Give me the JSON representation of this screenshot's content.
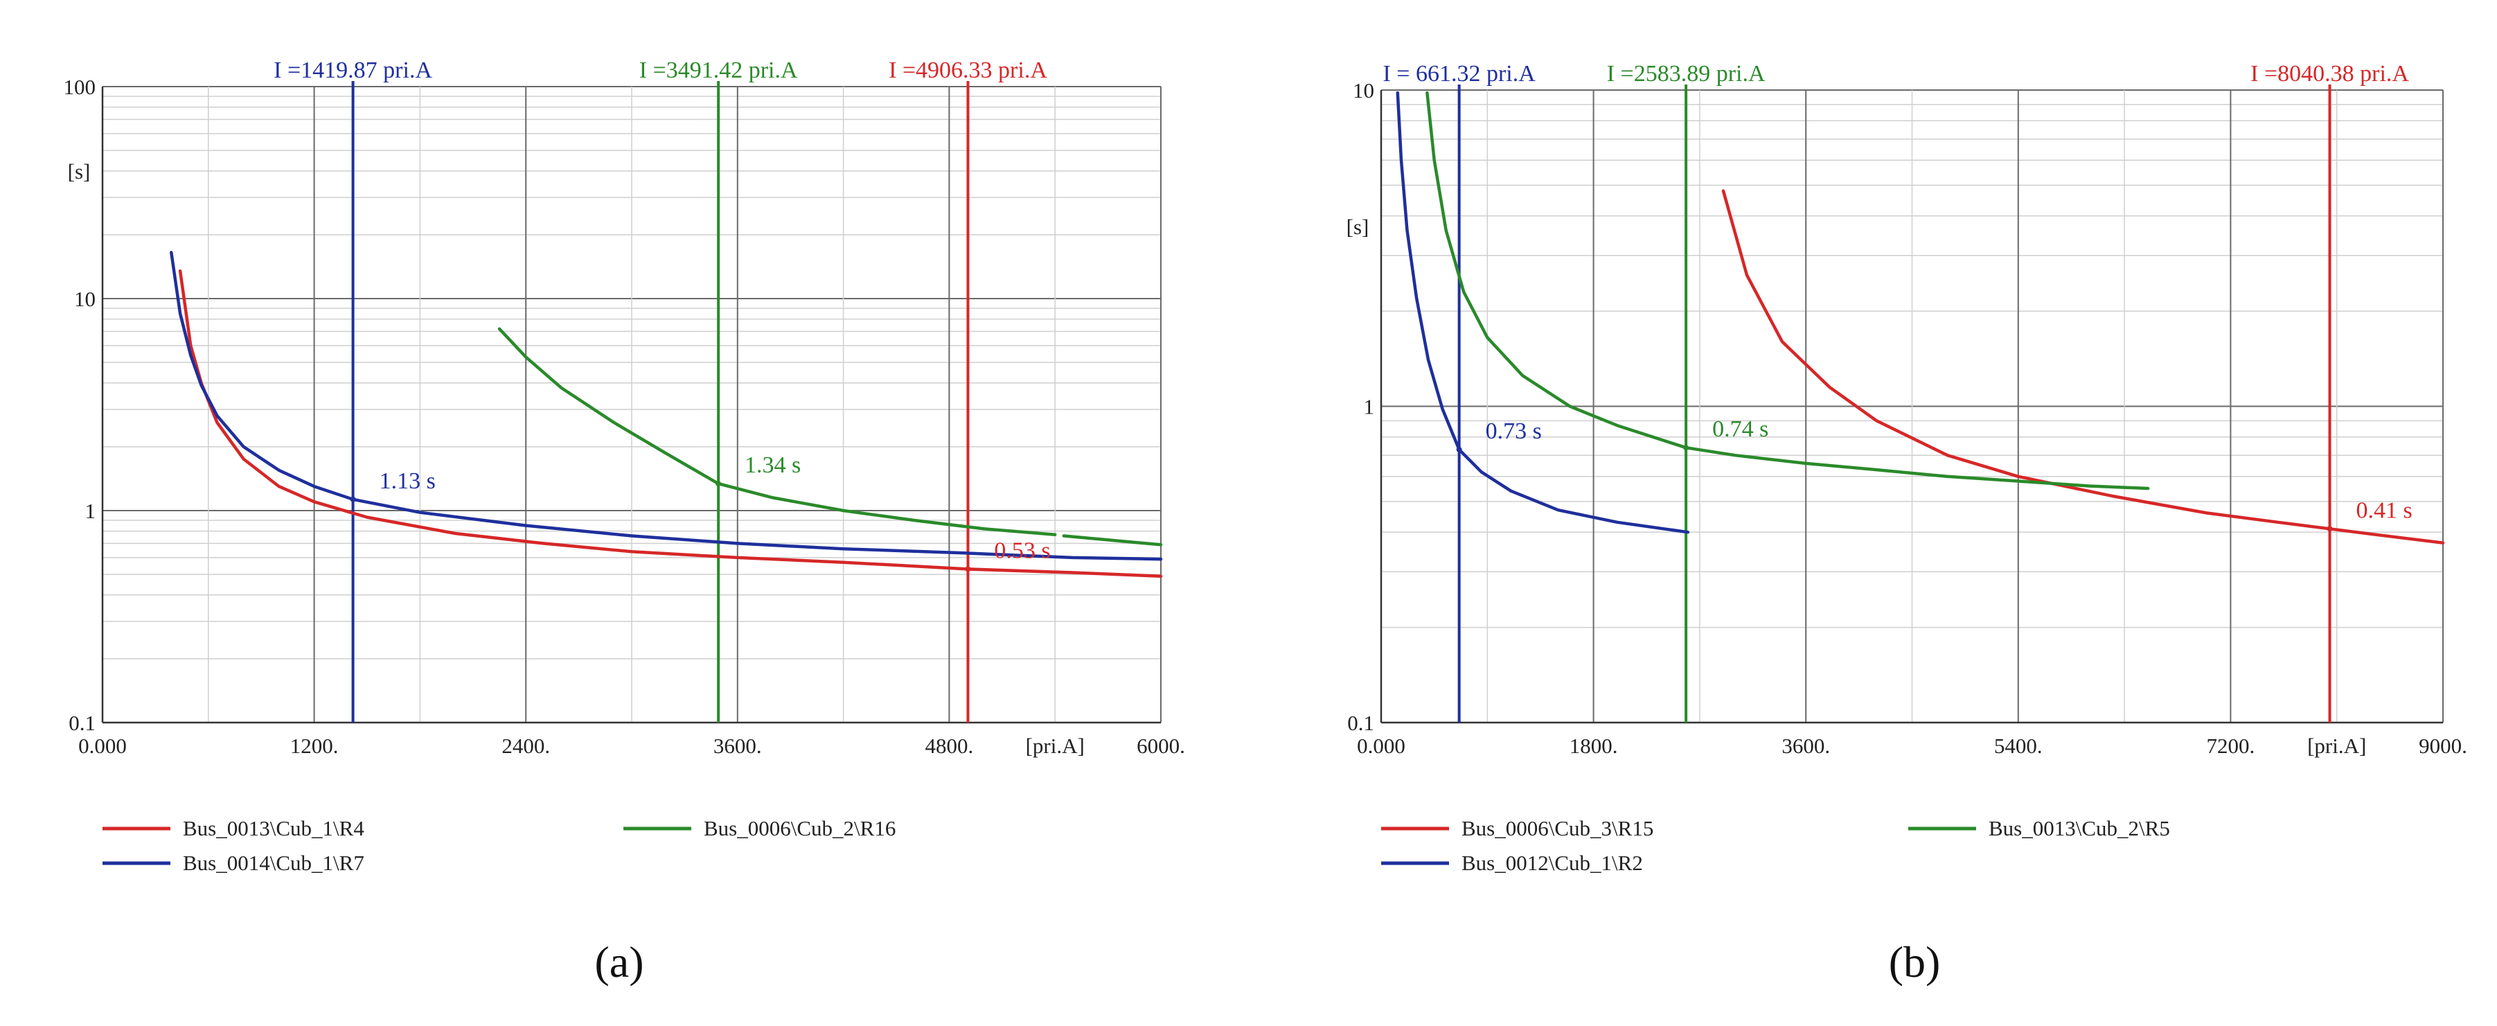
{
  "chart_data": [
    {
      "type": "line",
      "panel_label": "(a)",
      "xscale": "linear",
      "yscale": "log",
      "xlim": [
        0,
        6000
      ],
      "ylim": [
        0.1,
        100
      ],
      "x_ticks": [
        {
          "value": 0,
          "label": "0.000"
        },
        {
          "value": 1200,
          "label": "1200."
        },
        {
          "value": 2400,
          "label": "2400."
        },
        {
          "value": 3600,
          "label": "3600."
        },
        {
          "value": 4800,
          "label": "4800."
        },
        {
          "value": 6000,
          "label": "6000."
        }
      ],
      "x_unit_label": "[pri.A]",
      "x_unit_value": 5400,
      "y_ticks": [
        {
          "value": 0.1,
          "label": "0.1"
        },
        {
          "value": 1,
          "label": "1"
        },
        {
          "value": 10,
          "label": "10"
        },
        {
          "value": 100,
          "label": "100"
        }
      ],
      "y_unit_label": "[s]",
      "y_unit_value": 40,
      "grid": true,
      "series": [
        {
          "name": "Bus_0013\\Cub_1\\R4",
          "color": "#d62728",
          "x": [
            440,
            500,
            560,
            650,
            800,
            1000,
            1200,
            1500,
            2000,
            2500,
            3000,
            3600,
            4200,
            4900,
            5500,
            6000
          ],
          "y": [
            13.5,
            6.0,
            4.0,
            2.6,
            1.75,
            1.3,
            1.1,
            0.93,
            0.78,
            0.7,
            0.64,
            0.6,
            0.57,
            0.53,
            0.51,
            0.49
          ]
        },
        {
          "name": "Bus_0014\\Cub_1\\R7",
          "color": "#1f2f9c",
          "x": [
            390,
            440,
            500,
            560,
            650,
            800,
            1000,
            1200,
            1420,
            1800,
            2400,
            3000,
            3600,
            4200,
            4900,
            5500,
            6000
          ],
          "y": [
            16.5,
            8.5,
            5.4,
            3.9,
            2.8,
            2.0,
            1.55,
            1.3,
            1.13,
            0.98,
            0.85,
            0.76,
            0.7,
            0.66,
            0.63,
            0.6,
            0.59
          ]
        },
        {
          "name": "Bus_0006\\Cub_2\\R16",
          "color": "#2a8a2a",
          "x": [
            2250,
            2400,
            2600,
            2900,
            3200,
            3491,
            3800,
            4200,
            4600,
            5000,
            5400
          ],
          "y": [
            7.2,
            5.3,
            3.8,
            2.6,
            1.85,
            1.34,
            1.15,
            1.0,
            0.9,
            0.82,
            0.77
          ]
        },
        {
          "name": "Bus_0006\\Cub_2\\R16",
          "color": "#2a8a2a",
          "x": [
            5450,
            6000
          ],
          "y": [
            0.76,
            0.69
          ],
          "legend": false
        }
      ],
      "vlines": [
        {
          "x": 1419.87,
          "label": "I =1419.87 pri.A",
          "color": "#1f2f9c"
        },
        {
          "x": 3491.42,
          "label": "I =3491.42 pri.A",
          "color": "#2a8a2a"
        },
        {
          "x": 4906.33,
          "label": "I =4906.33 pri.A",
          "color": "#d62728"
        }
      ],
      "annotations": [
        {
          "text": "1.13 s",
          "x": 1420,
          "y": 1.13,
          "color": "#1f2f9c"
        },
        {
          "text": "1.34 s",
          "x": 3491,
          "y": 1.34,
          "color": "#2a8a2a"
        },
        {
          "text": "0.53 s",
          "x": 4906,
          "y": 0.53,
          "color": "#d62728"
        }
      ],
      "legend": [
        {
          "name": "Bus_0013\\Cub_1\\R4",
          "color": "#d62728"
        },
        {
          "name": "Bus_0006\\Cub_2\\R16",
          "color": "#2a8a2a"
        },
        {
          "name": "Bus_0014\\Cub_1\\R7",
          "color": "#1f2f9c"
        }
      ],
      "legend_placement": "bottom"
    },
    {
      "type": "line",
      "panel_label": "(b)",
      "xscale": "linear",
      "yscale": "log",
      "xlim": [
        0,
        9000
      ],
      "ylim": [
        0.1,
        10
      ],
      "x_ticks": [
        {
          "value": 0,
          "label": "0.000"
        },
        {
          "value": 1800,
          "label": "1800."
        },
        {
          "value": 3600,
          "label": "3600."
        },
        {
          "value": 5400,
          "label": "5400."
        },
        {
          "value": 7200,
          "label": "7200."
        },
        {
          "value": 9000,
          "label": "9000."
        }
      ],
      "x_unit_label": "[pri.A]",
      "x_unit_value": 8100,
      "y_ticks": [
        {
          "value": 0.1,
          "label": "0.1"
        },
        {
          "value": 1,
          "label": "1"
        },
        {
          "value": 10,
          "label": "10"
        }
      ],
      "y_unit_label": "[s]",
      "y_unit_value": 3.7,
      "grid": true,
      "series": [
        {
          "name": "Bus_0006\\Cub_3\\R15",
          "color": "#d62728",
          "x": [
            2900,
            3100,
            3400,
            3800,
            4200,
            4800,
            5400,
            6200,
            7000,
            7600,
            8040,
            8500,
            9000
          ],
          "y": [
            4.8,
            2.6,
            1.6,
            1.15,
            0.9,
            0.7,
            0.6,
            0.52,
            0.46,
            0.43,
            0.41,
            0.39,
            0.37
          ]
        },
        {
          "name": "Bus_0013\\Cub_2\\R5",
          "color": "#2a8a2a",
          "x": [
            390,
            450,
            550,
            700,
            900,
            1200,
            1600,
            2000,
            2584,
            3000,
            3600,
            4200,
            4800,
            5400,
            6000,
            6500
          ],
          "y": [
            9.8,
            6.0,
            3.6,
            2.3,
            1.65,
            1.25,
            1.0,
            0.87,
            0.74,
            0.7,
            0.66,
            0.63,
            0.6,
            0.58,
            0.56,
            0.55
          ]
        },
        {
          "name": "Bus_0012\\Cub_1\\R2",
          "color": "#1f2f9c",
          "x": [
            140,
            170,
            220,
            300,
            400,
            520,
            661,
            850,
            1100,
            1500,
            2000,
            2600
          ],
          "y": [
            9.8,
            6.0,
            3.6,
            2.2,
            1.4,
            0.98,
            0.73,
            0.62,
            0.54,
            0.47,
            0.43,
            0.4
          ]
        }
      ],
      "vlines": [
        {
          "x": 661.32,
          "label": "I = 661.32 pri.A",
          "color": "#1f2f9c"
        },
        {
          "x": 2583.89,
          "label": "I =2583.89 pri.A",
          "color": "#2a8a2a"
        },
        {
          "x": 8040.38,
          "label": "I =8040.38 pri.A",
          "color": "#d62728"
        }
      ],
      "annotations": [
        {
          "text": "0.73 s",
          "x": 661,
          "y": 0.73,
          "color": "#1f2f9c"
        },
        {
          "text": "0.74 s",
          "x": 2584,
          "y": 0.74,
          "color": "#2a8a2a"
        },
        {
          "text": "0.41 s",
          "x": 8040,
          "y": 0.41,
          "color": "#d62728"
        }
      ],
      "legend": [
        {
          "name": "Bus_0006\\Cub_3\\R15",
          "color": "#d62728"
        },
        {
          "name": "Bus_0013\\Cub_2\\R5",
          "color": "#2a8a2a"
        },
        {
          "name": "Bus_0012\\Cub_1\\R2",
          "color": "#1f2f9c"
        }
      ],
      "legend_placement": "bottom"
    }
  ]
}
